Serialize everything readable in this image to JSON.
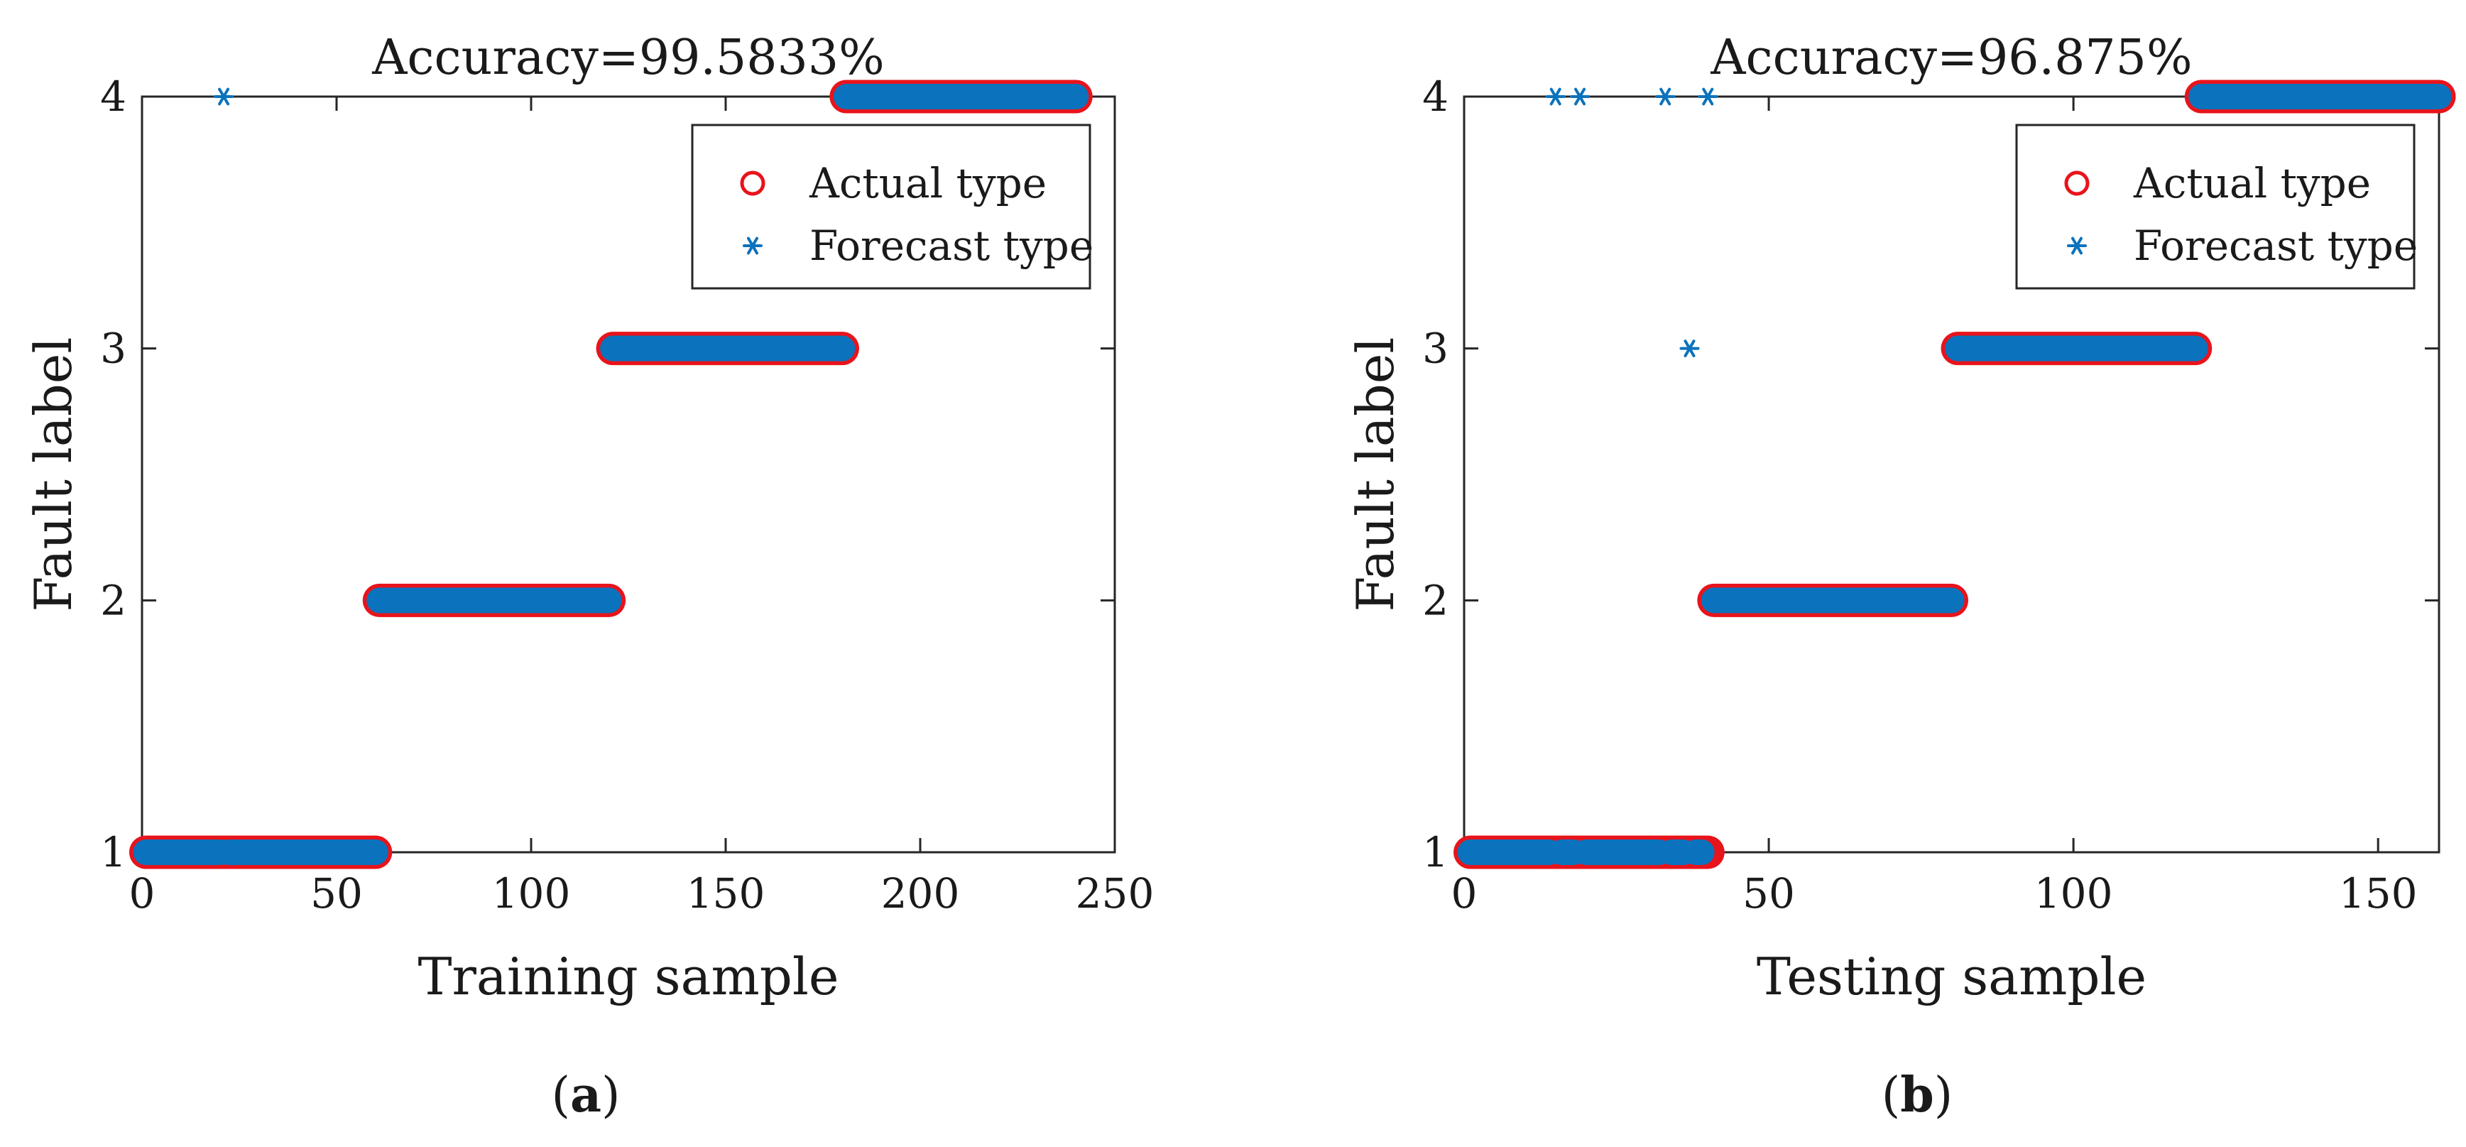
{
  "chart_data": [
    {
      "panel_label": "a",
      "type": "scatter",
      "title": "Accuracy=99.5833%",
      "xlabel": "Training sample",
      "ylabel": "Fault label",
      "xlim": [
        0,
        250
      ],
      "ylim": [
        1,
        4
      ],
      "xticks": [
        0,
        50,
        100,
        150,
        200,
        250
      ],
      "yticks": [
        1,
        2,
        3,
        4
      ],
      "grid": false,
      "legend_position": "top-right",
      "series": [
        {
          "name": "Actual type",
          "marker": "circle",
          "color": "#e8141b",
          "segments": [
            {
              "from": 1,
              "to": 60,
              "value": 1
            },
            {
              "from": 61,
              "to": 120,
              "value": 2
            },
            {
              "from": 121,
              "to": 180,
              "value": 3
            },
            {
              "from": 181,
              "to": 240,
              "value": 4
            }
          ]
        },
        {
          "name": "Forecast type",
          "marker": "asterisk",
          "color": "#0b72bd",
          "segments": [
            {
              "from": 1,
              "to": 20,
              "value": 1
            },
            {
              "from": 22,
              "to": 60,
              "value": 1
            },
            {
              "from": 61,
              "to": 120,
              "value": 2
            },
            {
              "from": 121,
              "to": 180,
              "value": 3
            },
            {
              "from": 181,
              "to": 240,
              "value": 4
            }
          ],
          "points": [
            {
              "x": 21,
              "y": 4
            }
          ]
        }
      ]
    },
    {
      "panel_label": "b",
      "type": "scatter",
      "title": "Accuracy=96.875%",
      "xlabel": "Testing sample",
      "ylabel": "Fault label",
      "xlim": [
        0,
        160
      ],
      "ylim": [
        1,
        4
      ],
      "xticks": [
        0,
        50,
        100,
        150
      ],
      "yticks": [
        1,
        2,
        3,
        4
      ],
      "grid": false,
      "legend_position": "top-right",
      "series": [
        {
          "name": "Actual type",
          "marker": "circle",
          "color": "#e8141b",
          "segments": [
            {
              "from": 1,
              "to": 40,
              "value": 1
            },
            {
              "from": 41,
              "to": 80,
              "value": 2
            },
            {
              "from": 81,
              "to": 120,
              "value": 3
            },
            {
              "from": 121,
              "to": 160,
              "value": 4
            }
          ]
        },
        {
          "name": "Forecast type",
          "marker": "asterisk",
          "color": "#0b72bd",
          "segments": [
            {
              "from": 1,
              "to": 14,
              "value": 1
            },
            {
              "from": 16,
              "to": 18,
              "value": 1
            },
            {
              "from": 20,
              "to": 32,
              "value": 1
            },
            {
              "from": 34,
              "to": 36,
              "value": 1
            },
            {
              "from": 38,
              "to": 39,
              "value": 1
            },
            {
              "from": 41,
              "to": 80,
              "value": 2
            },
            {
              "from": 81,
              "to": 120,
              "value": 3
            },
            {
              "from": 121,
              "to": 160,
              "value": 4
            }
          ],
          "points": [
            {
              "x": 15,
              "y": 4
            },
            {
              "x": 19,
              "y": 4
            },
            {
              "x": 33,
              "y": 4
            },
            {
              "x": 40,
              "y": 4
            },
            {
              "x": 37,
              "y": 3
            }
          ]
        }
      ]
    }
  ]
}
